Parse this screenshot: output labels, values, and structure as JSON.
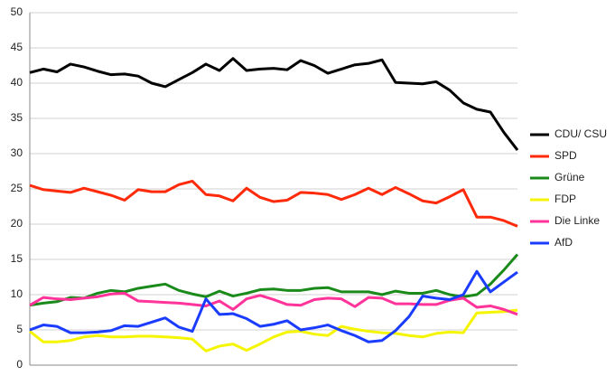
{
  "chart_data": {
    "type": "line",
    "categories": [
      null,
      null,
      null,
      null,
      null,
      null,
      null,
      null,
      null,
      null,
      null,
      null,
      null,
      null,
      null,
      null,
      null,
      null,
      null,
      null,
      null,
      null,
      null,
      null,
      null,
      null,
      null,
      null,
      null,
      null,
      null,
      null,
      null,
      null,
      null,
      null,
      null
    ],
    "series": [
      {
        "name": "CDU/ CSU",
        "color": "#000000",
        "values": [
          41.5,
          42.0,
          41.6,
          42.7,
          42.3,
          41.7,
          41.2,
          41.3,
          41.0,
          40.0,
          39.5,
          40.5,
          41.5,
          42.7,
          41.8,
          43.5,
          41.8,
          42.0,
          42.1,
          41.9,
          43.2,
          42.5,
          41.4,
          42.0,
          42.6,
          42.8,
          43.3,
          40.1,
          40.0,
          39.9,
          40.2,
          39.0,
          37.2,
          36.3,
          35.9,
          33.0,
          30.5
        ]
      },
      {
        "name": "SPD",
        "color": "#ff2a0a",
        "values": [
          25.5,
          24.9,
          24.7,
          24.5,
          25.1,
          24.6,
          24.1,
          23.4,
          24.9,
          24.6,
          24.6,
          25.6,
          26.1,
          24.2,
          24.0,
          23.3,
          25.1,
          23.8,
          23.2,
          23.4,
          24.5,
          24.4,
          24.2,
          23.5,
          24.2,
          25.1,
          24.2,
          25.2,
          24.3,
          23.3,
          23.0,
          23.9,
          24.9,
          21.0,
          21.0,
          20.5,
          19.7
        ]
      },
      {
        "name": "Grüne",
        "color": "#1a8a1a",
        "values": [
          8.5,
          8.8,
          9.0,
          9.6,
          9.5,
          10.2,
          10.6,
          10.4,
          10.9,
          11.2,
          11.5,
          10.6,
          10.1,
          9.7,
          10.5,
          9.8,
          10.2,
          10.7,
          10.8,
          10.6,
          10.6,
          10.9,
          11.0,
          10.4,
          10.4,
          10.4,
          10.0,
          10.5,
          10.2,
          10.2,
          10.6,
          10.0,
          9.7,
          10.0,
          11.5,
          13.5,
          15.7
        ]
      },
      {
        "name": "FDP",
        "color": "#f5f500",
        "values": [
          4.8,
          3.3,
          3.3,
          3.5,
          4.0,
          4.2,
          4.0,
          4.0,
          4.1,
          4.1,
          4.0,
          3.9,
          3.7,
          2.0,
          2.7,
          3.0,
          2.1,
          3.0,
          4.0,
          4.7,
          4.8,
          4.4,
          4.2,
          5.5,
          5.1,
          4.8,
          4.6,
          4.5,
          4.2,
          4.0,
          4.5,
          4.7,
          4.6,
          7.4,
          7.5,
          7.6,
          7.8
        ]
      },
      {
        "name": "Die Linke",
        "color": "#ff3399",
        "values": [
          8.5,
          9.6,
          9.4,
          9.3,
          9.5,
          9.7,
          10.1,
          10.2,
          9.1,
          9.0,
          8.9,
          8.8,
          8.6,
          8.4,
          9.1,
          7.9,
          9.4,
          9.9,
          9.3,
          8.6,
          8.5,
          9.3,
          9.5,
          9.4,
          8.3,
          9.6,
          9.5,
          8.7,
          8.7,
          8.6,
          8.6,
          9.2,
          9.5,
          8.2,
          8.4,
          7.9,
          7.2
        ]
      },
      {
        "name": "AfD",
        "color": "#1a3cff",
        "values": [
          5.0,
          5.7,
          5.5,
          4.6,
          4.6,
          4.7,
          4.9,
          5.6,
          5.5,
          6.1,
          6.7,
          5.4,
          4.8,
          9.4,
          7.2,
          7.3,
          6.6,
          5.5,
          5.8,
          6.3,
          5.0,
          5.3,
          5.7,
          4.9,
          4.2,
          3.3,
          3.5,
          4.9,
          6.9,
          9.8,
          9.5,
          9.3,
          10.0,
          13.3,
          10.4,
          11.8,
          13.2
        ]
      }
    ],
    "ylim": [
      0,
      50
    ],
    "yticks": [
      0,
      5,
      10,
      15,
      20,
      25,
      30,
      35,
      40,
      45,
      50
    ],
    "grid": true,
    "legend": "right"
  }
}
